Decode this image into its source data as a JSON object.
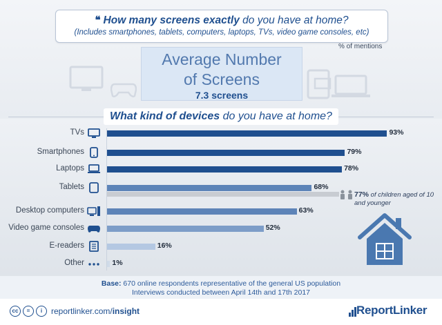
{
  "header": {
    "quote_mark": "❝",
    "question_bold": "How many screens exactly",
    "question_rest": " do you have at home?",
    "question_note": "(Includes smartphones, tablets, computers, laptops, TVs, video game consoles, etc)",
    "mentions": "% of mentions"
  },
  "summary": {
    "title_line1": "Average Number",
    "title_line2": "of Screens",
    "value": "7.3 screens"
  },
  "subheading": {
    "bold": "What kind of devices",
    "rest": " do you have at home?"
  },
  "chart_data": {
    "type": "bar",
    "orientation": "horizontal",
    "title": "What kind of devices do you have at home?",
    "categories": [
      "TVs",
      "Smartphones",
      "Laptops",
      "Tablets",
      "Desktop computers",
      "Video game consoles",
      "E-readers",
      "Other"
    ],
    "values": [
      93,
      79,
      78,
      68,
      63,
      52,
      16,
      1
    ],
    "value_labels": [
      "93%",
      "79%",
      "78%",
      "68%",
      "63%",
      "52%",
      "16%",
      "1%"
    ],
    "unit": "%",
    "xlim": [
      0,
      100
    ],
    "icons": [
      "tv-icon",
      "smartphone-icon",
      "laptop-icon",
      "tablet-icon",
      "desktop-computer-icon",
      "gamepad-icon",
      "e-reader-icon",
      "dots-icon"
    ],
    "bar_colors": [
      "#1f4f8f",
      "#1f4f8f",
      "#1f4f8f",
      "#5d84b8",
      "#5d84b8",
      "#7d9dc8",
      "#b4c8e2",
      "#d0dbe9"
    ],
    "secondary": {
      "category": "Tablets",
      "value": 77,
      "value_label": "77%",
      "note": "of children aged of 10 and younger",
      "color": "#c8ccd2"
    }
  },
  "base": {
    "label": "Base:",
    "line1": " 670 online respondents representative of the general US population",
    "line2": "Interviews conducted between April 14th and 17th 2017"
  },
  "footer": {
    "license_icons": [
      "creative-commons-icon",
      "equals-icon",
      "attribution-icon"
    ],
    "url_plain": "reportlinker.com/",
    "url_bold": "insight",
    "brand": "ReportLinker"
  },
  "colors": {
    "primary": "#1f4f8f",
    "light_blue": "#dbe7f5",
    "house": "#4a78b0"
  }
}
